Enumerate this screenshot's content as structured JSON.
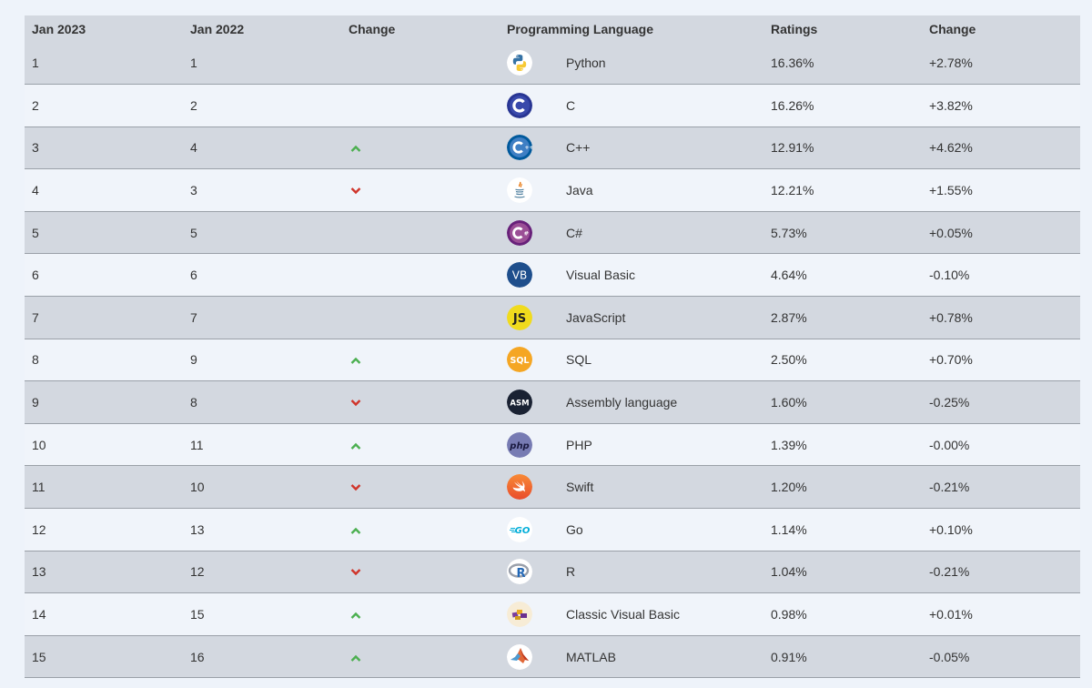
{
  "header": {
    "col1": "Jan 2023",
    "col2": "Jan 2022",
    "col3": "Change",
    "col4": "Programming Language",
    "col5": "Ratings",
    "col6": "Change"
  },
  "rows": [
    {
      "jan2023": "1",
      "jan2022": "1",
      "trend": "none",
      "language": "Python",
      "ratings": "16.36%",
      "change": "+2.78%",
      "icon": "python-icon"
    },
    {
      "jan2023": "2",
      "jan2022": "2",
      "trend": "none",
      "language": "C",
      "ratings": "16.26%",
      "change": "+3.82%",
      "icon": "c-icon"
    },
    {
      "jan2023": "3",
      "jan2022": "4",
      "trend": "up",
      "language": "C++",
      "ratings": "12.91%",
      "change": "+4.62%",
      "icon": "cpp-icon"
    },
    {
      "jan2023": "4",
      "jan2022": "3",
      "trend": "down",
      "language": "Java",
      "ratings": "12.21%",
      "change": "+1.55%",
      "icon": "java-icon"
    },
    {
      "jan2023": "5",
      "jan2022": "5",
      "trend": "none",
      "language": "C#",
      "ratings": "5.73%",
      "change": "+0.05%",
      "icon": "csharp-icon"
    },
    {
      "jan2023": "6",
      "jan2022": "6",
      "trend": "none",
      "language": "Visual Basic",
      "ratings": "4.64%",
      "change": "-0.10%",
      "icon": "visual-basic-icon"
    },
    {
      "jan2023": "7",
      "jan2022": "7",
      "trend": "none",
      "language": "JavaScript",
      "ratings": "2.87%",
      "change": "+0.78%",
      "icon": "javascript-icon"
    },
    {
      "jan2023": "8",
      "jan2022": "9",
      "trend": "up",
      "language": "SQL",
      "ratings": "2.50%",
      "change": "+0.70%",
      "icon": "sql-icon"
    },
    {
      "jan2023": "9",
      "jan2022": "8",
      "trend": "down",
      "language": "Assembly language",
      "ratings": "1.60%",
      "change": "-0.25%",
      "icon": "assembly-icon"
    },
    {
      "jan2023": "10",
      "jan2022": "11",
      "trend": "up",
      "language": "PHP",
      "ratings": "1.39%",
      "change": "-0.00%",
      "icon": "php-icon"
    },
    {
      "jan2023": "11",
      "jan2022": "10",
      "trend": "down",
      "language": "Swift",
      "ratings": "1.20%",
      "change": "-0.21%",
      "icon": "swift-icon"
    },
    {
      "jan2023": "12",
      "jan2022": "13",
      "trend": "up",
      "language": "Go",
      "ratings": "1.14%",
      "change": "+0.10%",
      "icon": "go-icon"
    },
    {
      "jan2023": "13",
      "jan2022": "12",
      "trend": "down",
      "language": "R",
      "ratings": "1.04%",
      "change": "-0.21%",
      "icon": "r-icon"
    },
    {
      "jan2023": "14",
      "jan2022": "15",
      "trend": "up",
      "language": "Classic Visual Basic",
      "ratings": "0.98%",
      "change": "+0.01%",
      "icon": "classic-visual-basic-icon"
    },
    {
      "jan2023": "15",
      "jan2022": "16",
      "trend": "up",
      "language": "MATLAB",
      "ratings": "0.91%",
      "change": "-0.05%",
      "icon": "matlab-icon"
    }
  ],
  "logo_text": {
    "vb": "VB",
    "js": "JS",
    "sql": "SQL",
    "asm": "ASM",
    "php": "php",
    "go": "GO",
    "r": "R"
  },
  "colors": {
    "up": "#4caf50",
    "down": "#d0352b",
    "row_dark": "#d3d8e0",
    "row_light": "#f0f4fa",
    "page_bg": "#eef3fa"
  }
}
